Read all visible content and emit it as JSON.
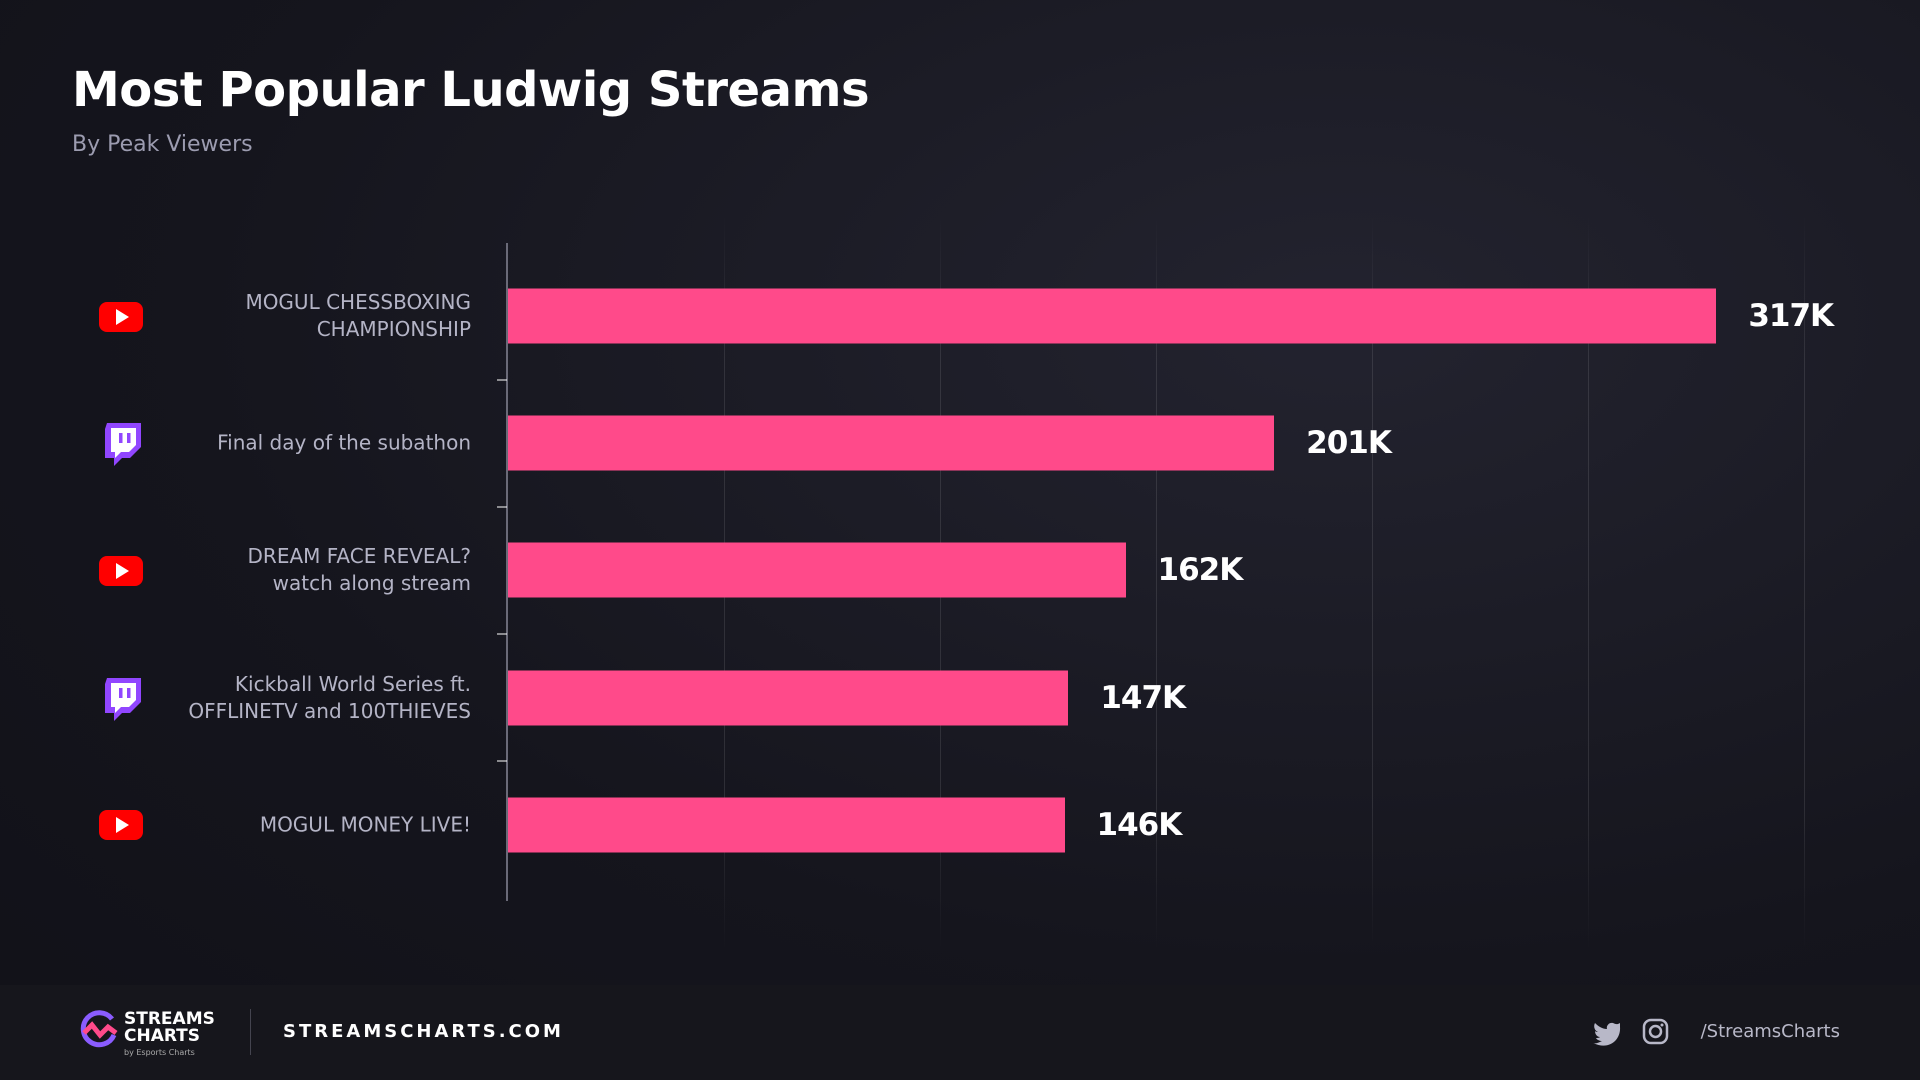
{
  "chart_data": {
    "type": "barh",
    "title": "Most Popular Ludwig Streams",
    "subtitle": "By Peak Viewers",
    "categories": [
      "MOGUL CHESSBOXING\nCHAMPIONSHIP",
      "Final day of the subathon",
      "DREAM FACE REVEAL?\nwatch along stream",
      "Kickball World Series ft.\nOFFLINETV and 100THIEVES",
      "MOGUL MONEY LIVE!"
    ],
    "values": [
      317000,
      201000,
      162000,
      147000,
      146000
    ],
    "value_labels": [
      "317K",
      "201K",
      "162K",
      "147K",
      "146K"
    ],
    "color": "#ff4a8a",
    "xlim": [
      0,
      340000
    ]
  },
  "footer": {
    "logo_line1": "STREAMS",
    "logo_line2": "CHARTS",
    "logo_by": "by Esports Charts",
    "site": "STREAMSCHARTS.COM",
    "handle": "/StreamsCharts"
  }
}
